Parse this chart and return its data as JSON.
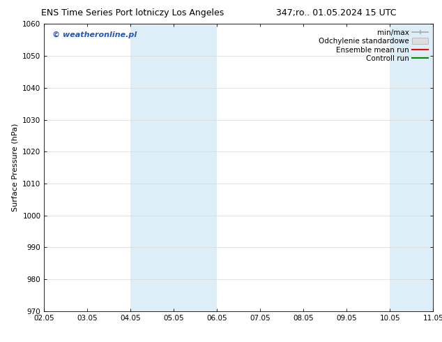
{
  "title_left": "ENS Time Series Port lotniczy Los Angeles",
  "title_right": "347;ro.. 01.05.2024 15 UTC",
  "ylabel": "Surface Pressure (hPa)",
  "ylim": [
    970,
    1060
  ],
  "yticks": [
    970,
    980,
    990,
    1000,
    1010,
    1020,
    1030,
    1040,
    1050,
    1060
  ],
  "xtick_labels": [
    "02.05",
    "03.05",
    "04.05",
    "05.05",
    "06.05",
    "07.05",
    "08.05",
    "09.05",
    "10.05",
    "11.05"
  ],
  "watermark": "© weatheronline.pl",
  "legend_labels": [
    "min/max",
    "Odchylenie standardowe",
    "Ensemble mean run",
    "Controll run"
  ],
  "background_color": "#ffffff",
  "plot_bg_color": "#ffffff",
  "grid_color": "#d8d8d8",
  "band_color": "#ddeef8",
  "band_ranges": [
    [
      2,
      4
    ],
    [
      8,
      9
    ]
  ],
  "title_fontsize": 9,
  "tick_fontsize": 7.5,
  "ylabel_fontsize": 8,
  "watermark_fontsize": 8,
  "legend_fontsize": 7.5,
  "minmax_color": "#aaaaaa",
  "std_color": "#dddddd",
  "ens_color": "#ff0000",
  "ctrl_color": "#008800",
  "watermark_color": "#2255bb"
}
